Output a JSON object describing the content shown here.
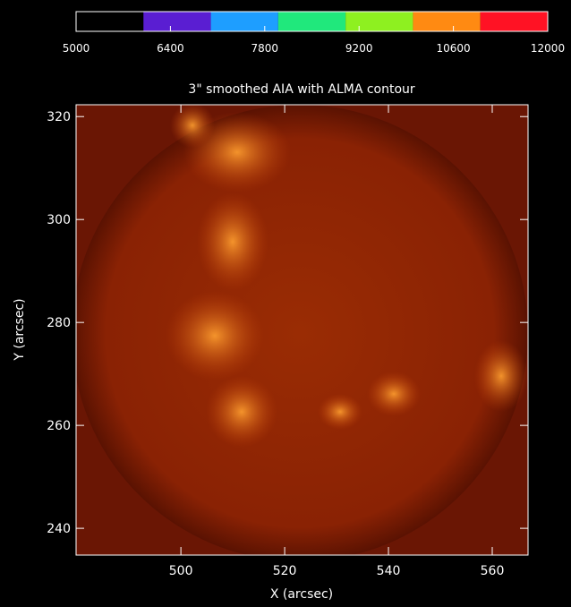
{
  "chart_data": {
    "type": "image-contour",
    "title": "3\" smoothed AIA with ALMA contour",
    "xlabel": "X (arcsec)",
    "ylabel": "Y (arcsec)",
    "xlim": [
      479.8,
      566.9
    ],
    "ylim": [
      234.8,
      322.3
    ],
    "xticks": [
      500,
      520,
      540,
      560
    ],
    "yticks": [
      240,
      260,
      280,
      300,
      320
    ],
    "colorbar": {
      "clim": [
        5000,
        12000
      ],
      "ticks": [
        5000,
        6400,
        7800,
        9200,
        10600,
        12000
      ],
      "bounds": [
        5000,
        6000,
        7000,
        8000,
        9000,
        10000,
        11000,
        12000
      ],
      "colors": [
        "#000000",
        "#5a1ed2",
        "#1e9eff",
        "#20e87c",
        "#8ef020",
        "#ff8a12",
        "#ff1224"
      ]
    }
  }
}
